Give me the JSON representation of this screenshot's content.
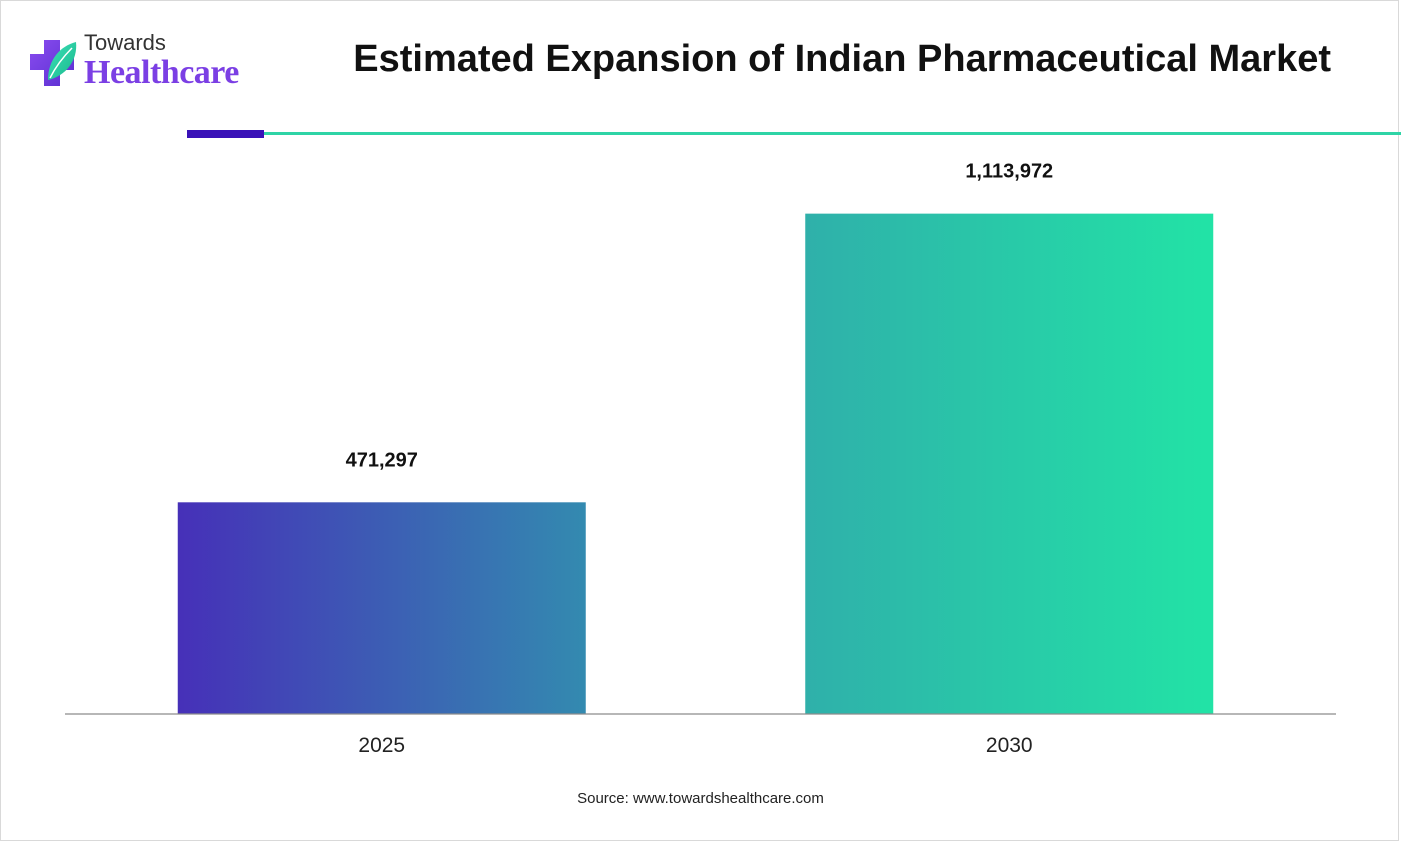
{
  "brand": {
    "line1": "Towards",
    "line2": "Healthcare"
  },
  "colors": {
    "brand_purple": "#7b3fe4",
    "accent_bar": "#3a12b8",
    "accent_line": "#2fd4a6",
    "bar_2025_start": "#4630b8",
    "bar_2025_end": "#338ab0",
    "bar_2030_start": "#2fb0aa",
    "bar_2030_end": "#22e3a6"
  },
  "chart_data": {
    "type": "bar",
    "title": "Estimated Expansion of Indian Pharmaceutical Market",
    "categories": [
      "2025",
      "2030"
    ],
    "values": [
      471297,
      1113972
    ],
    "value_labels": [
      "471,297",
      "1,113,972"
    ],
    "xlabel": "",
    "ylabel": "",
    "ylim": [
      0,
      1200000
    ],
    "grid": false,
    "legend": "none"
  },
  "source": "Source: www.towardshealthcare.com"
}
